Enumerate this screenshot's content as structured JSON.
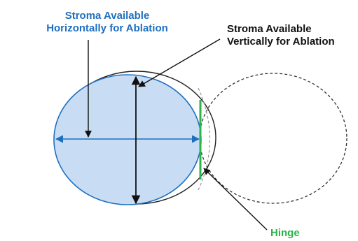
{
  "labels": {
    "horizontal": {
      "line1": "Stroma Available",
      "line2": "Horizontally for Ablation"
    },
    "vertical": {
      "line1": "Stroma Available",
      "line2": "Vertically for Ablation"
    },
    "hinge": "Hinge"
  },
  "colors": {
    "stroma_fill": "#c8ddf3",
    "stroma_outline": "#1f6fbf",
    "horizontal_label": "#1f6fbf",
    "horizontal_arrow": "#1f6fbf",
    "vertical_label": "#111111",
    "vertical_arrow": "#111111",
    "hinge_line": "#2db34a",
    "hinge_label": "#2db34a",
    "flap_outline": "#222222",
    "flap_dashed": "#333333",
    "hinge_dashed_arc": "#999999"
  }
}
